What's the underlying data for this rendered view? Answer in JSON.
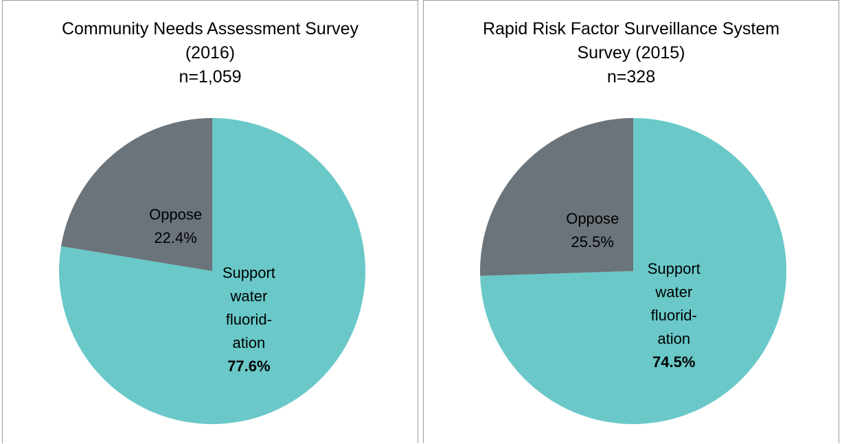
{
  "chart_data": [
    {
      "type": "pie",
      "title": "Community Needs Assessment Survey (2016)",
      "subtitle": "n=1,059",
      "categories": [
        "Support water fluorid-ation",
        "Oppose"
      ],
      "values": [
        77.6,
        22.4
      ],
      "value_labels": [
        "77.6%",
        "22.4%"
      ],
      "colors": [
        "#6ac8c8",
        "#6b737b"
      ]
    },
    {
      "type": "pie",
      "title": "Rapid Risk Factor Surveillance System Survey (2015)",
      "subtitle": "n=328",
      "categories": [
        "Support water fluorid-ation",
        "Oppose"
      ],
      "values": [
        74.5,
        25.5
      ],
      "value_labels": [
        "74.5%",
        "25.5%"
      ],
      "colors": [
        "#6ac8c8",
        "#6b737b"
      ]
    }
  ]
}
